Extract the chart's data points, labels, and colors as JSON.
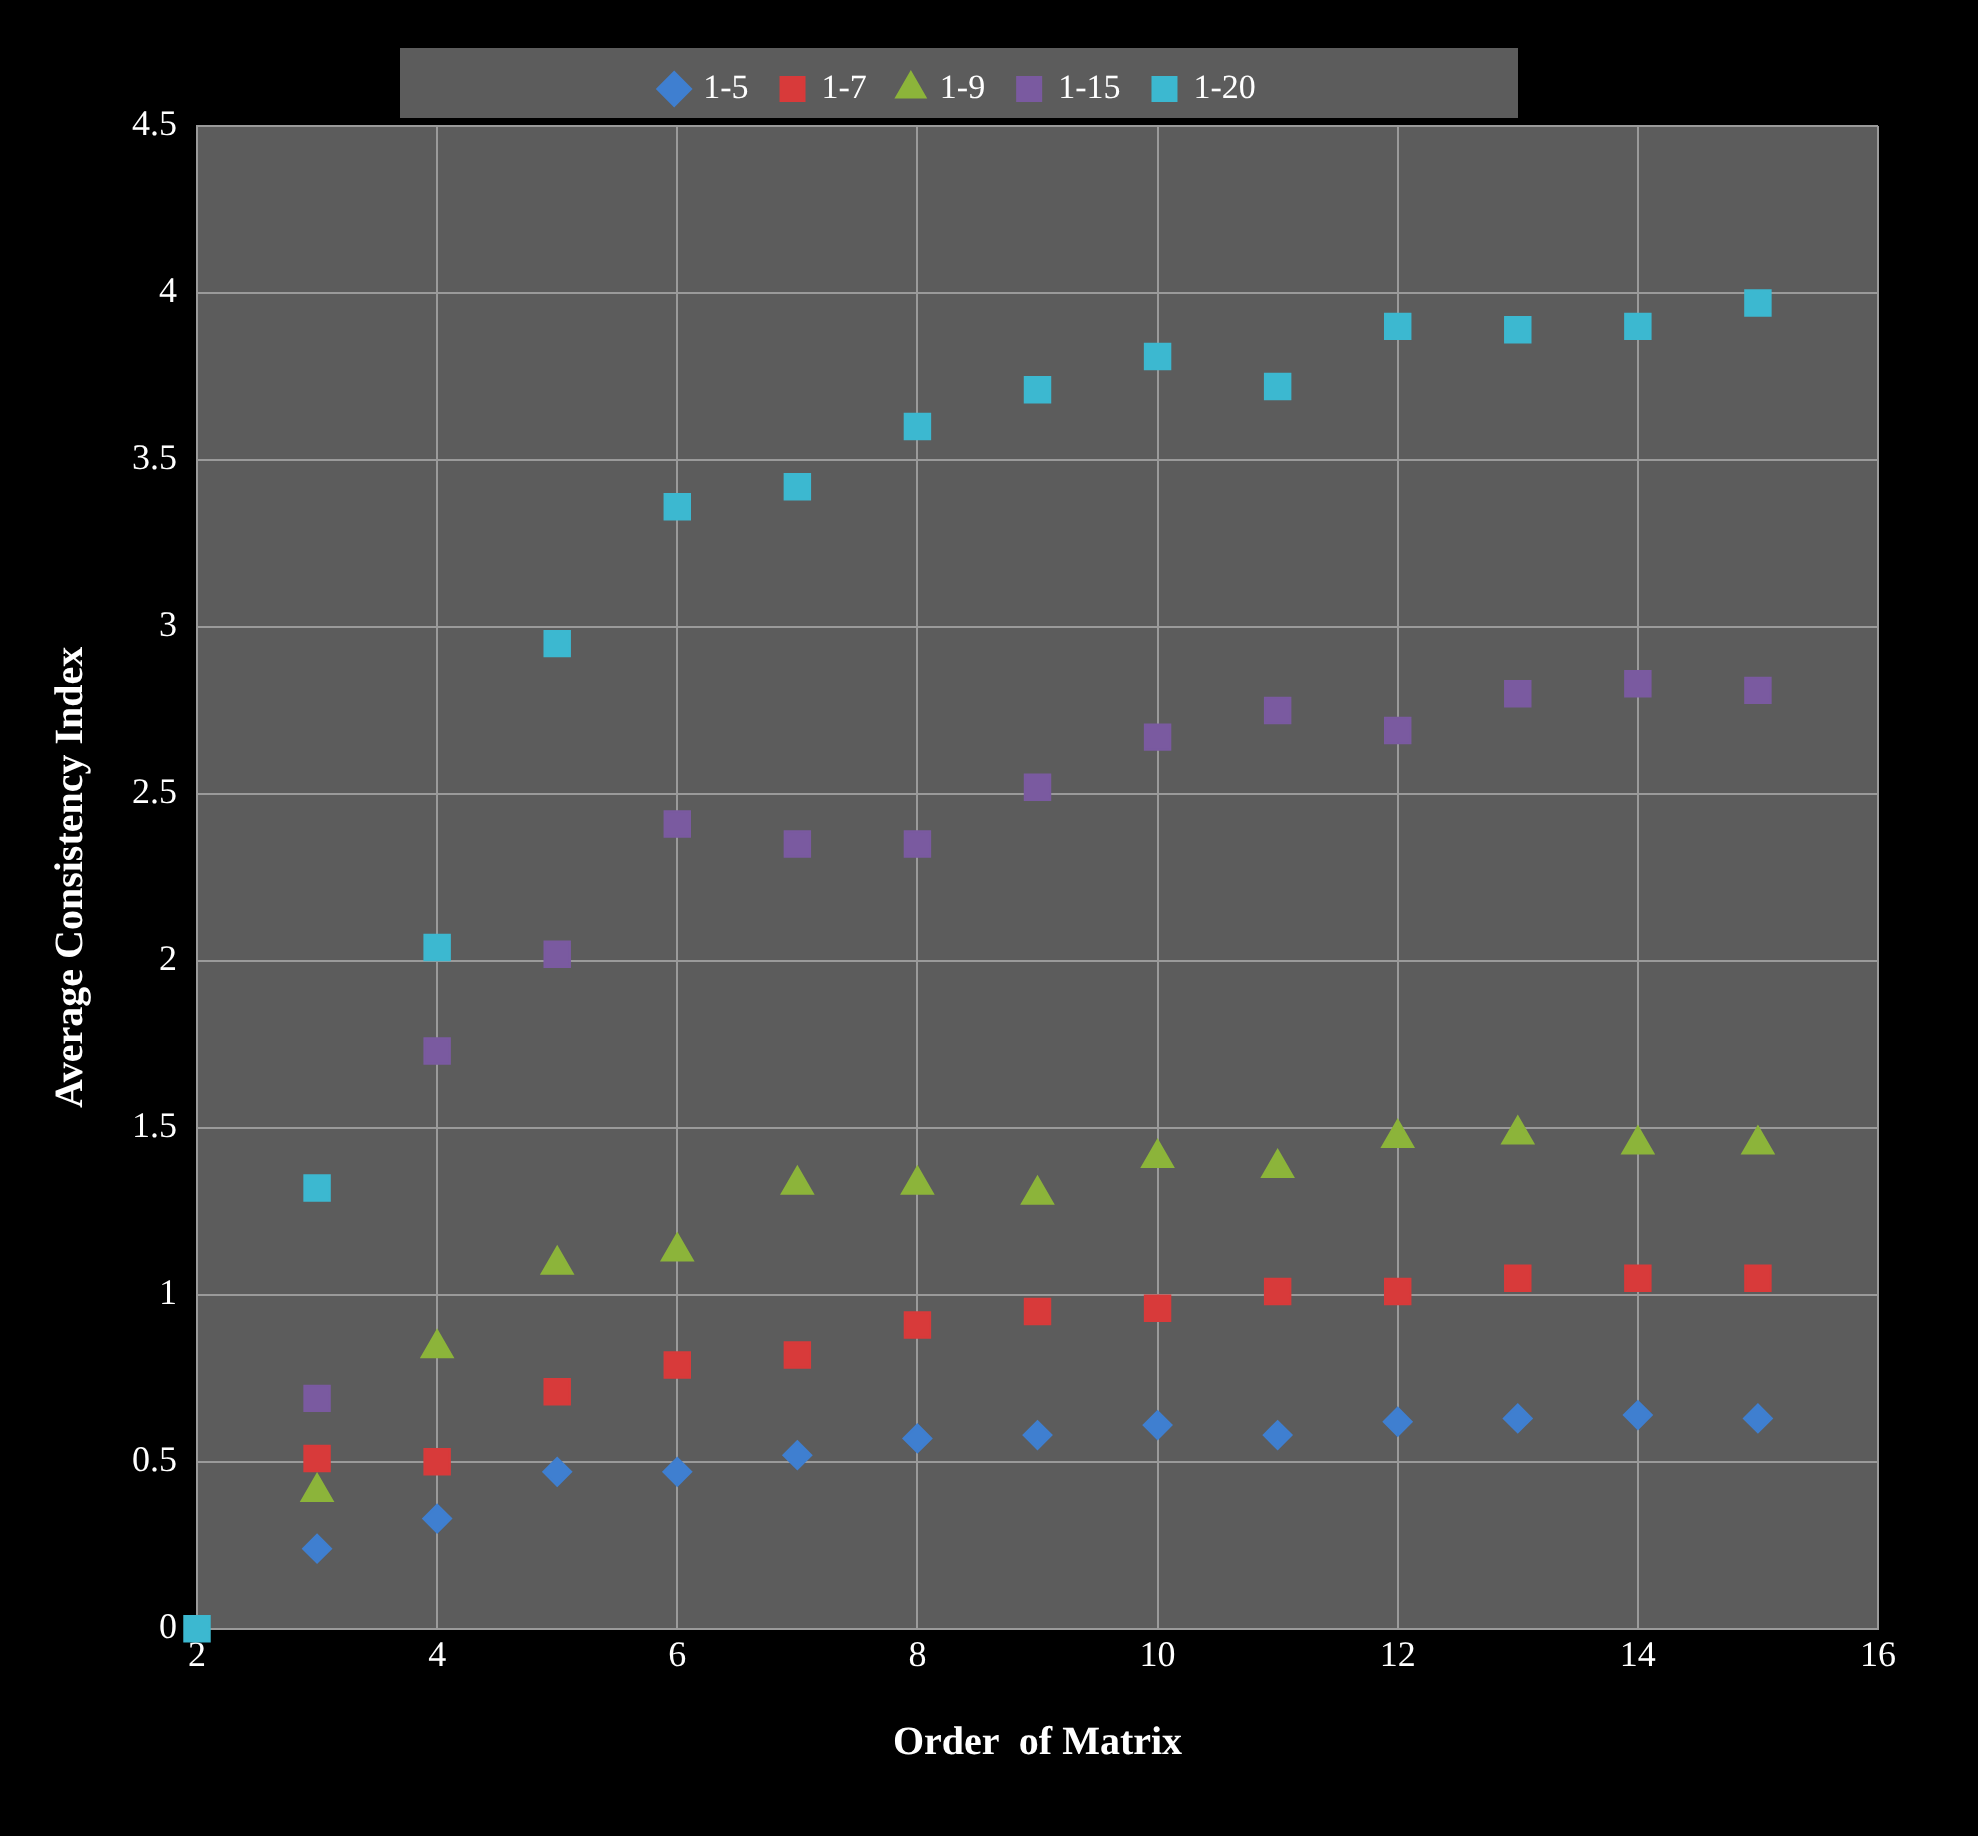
{
  "chart_data": {
    "type": "scatter",
    "xlabel": "Order  of Matrix",
    "ylabel": "Average Consistency Index",
    "x": [
      2,
      3,
      4,
      5,
      6,
      7,
      8,
      9,
      10,
      11,
      12,
      13,
      14,
      15
    ],
    "xlim": [
      2,
      16
    ],
    "xticks": [
      2,
      4,
      6,
      8,
      10,
      12,
      14,
      16
    ],
    "ylim": [
      0,
      4.5
    ],
    "yticks": [
      0,
      0.5,
      1,
      1.5,
      2,
      2.5,
      3,
      3.5,
      4,
      4.5
    ],
    "grid": true,
    "legend": "top",
    "series": [
      {
        "name": "1-5",
        "color": "#3f7fd0",
        "marker": "diamond",
        "values": [
          null,
          0.24,
          0.33,
          0.47,
          0.47,
          0.52,
          0.57,
          0.58,
          0.61,
          0.58,
          0.62,
          0.63,
          0.64,
          0.63
        ]
      },
      {
        "name": "1-7",
        "color": "#d83a3a",
        "marker": "square",
        "values": [
          null,
          0.51,
          0.5,
          0.71,
          0.79,
          0.82,
          0.91,
          0.95,
          0.96,
          1.01,
          1.01,
          1.05,
          1.05,
          1.05
        ]
      },
      {
        "name": "1-9",
        "color": "#8cb43a",
        "marker": "triangle",
        "values": [
          null,
          0.41,
          0.84,
          1.09,
          1.13,
          1.33,
          1.33,
          1.3,
          1.41,
          1.38,
          1.47,
          1.48,
          1.45,
          1.45
        ]
      },
      {
        "name": "1-15",
        "color": "#7a5aa0",
        "marker": "square",
        "values": [
          null,
          0.69,
          1.73,
          2.02,
          2.41,
          2.35,
          2.35,
          2.52,
          2.67,
          2.75,
          2.69,
          2.8,
          2.83,
          2.81
        ]
      },
      {
        "name": "1-20",
        "color": "#3cb8d0",
        "marker": "square",
        "values": [
          0,
          1.32,
          2.04,
          2.95,
          3.36,
          3.42,
          3.6,
          3.71,
          3.81,
          3.72,
          3.9,
          3.89,
          3.9,
          3.97
        ]
      }
    ]
  }
}
